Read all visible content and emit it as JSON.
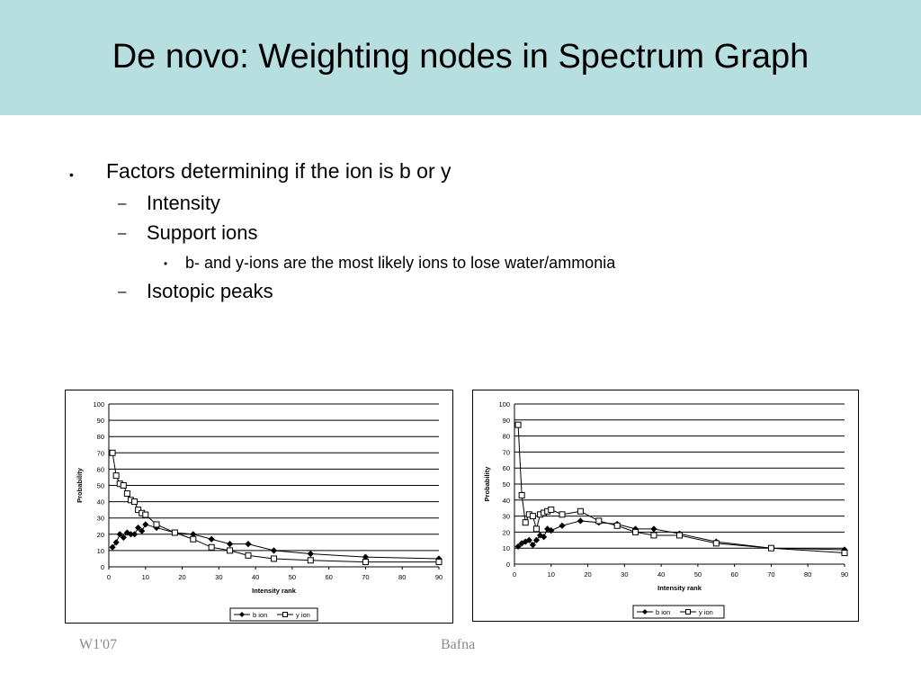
{
  "slide": {
    "title": "De novo: Weighting nodes in Spectrum Graph",
    "bullets": {
      "b1": {
        "text": "Factors determining if the ion is b or y",
        "marker": "•"
      },
      "b2": {
        "text": "Intensity",
        "marker": "–"
      },
      "b3": {
        "text": "Support ions",
        "marker": "–"
      },
      "b4": {
        "text": "b- and y-ions are the most likely ions to lose water/ammonia",
        "marker": "•"
      },
      "b5": {
        "text": "Isotopic peaks",
        "marker": "–"
      }
    },
    "footer": {
      "left": "W1'07",
      "center": "Bafna"
    }
  },
  "chart_data": [
    {
      "type": "line",
      "title": "",
      "xlabel": "Intensity rank",
      "ylabel": "Probability",
      "xlim": [
        0,
        90
      ],
      "ylim": [
        0,
        100
      ],
      "xticks": [
        0,
        10,
        20,
        30,
        40,
        50,
        60,
        70,
        80,
        90
      ],
      "yticks": [
        0,
        10,
        20,
        30,
        40,
        50,
        60,
        70,
        80,
        90,
        100
      ],
      "grid": "horizontal",
      "legend": "bottom-center",
      "series": [
        {
          "name": "b ion",
          "marker": "filled-diamond",
          "color": "#000000",
          "x": [
            1,
            2,
            3,
            4,
            5,
            6,
            7,
            8,
            9,
            10,
            13,
            18,
            23,
            28,
            33,
            38,
            45,
            55,
            70,
            90
          ],
          "y": [
            12,
            15,
            20,
            18,
            21,
            20,
            20,
            24,
            22,
            26,
            24,
            21,
            20,
            17,
            14,
            14,
            10,
            8,
            6,
            5
          ]
        },
        {
          "name": "y ion",
          "marker": "open-square",
          "color": "#000000",
          "x": [
            1,
            2,
            3,
            4,
            5,
            6,
            7,
            8,
            9,
            10,
            13,
            18,
            23,
            28,
            33,
            38,
            45,
            55,
            70,
            90
          ],
          "y": [
            70,
            56,
            51,
            50,
            45,
            41,
            40,
            35,
            33,
            32,
            26,
            21,
            17,
            12,
            10,
            7,
            5,
            4,
            3,
            3
          ]
        }
      ]
    },
    {
      "type": "line",
      "title": "",
      "xlabel": "Intensity rank",
      "ylabel": "Probability",
      "xlim": [
        0,
        90
      ],
      "ylim": [
        0,
        100
      ],
      "xticks": [
        0,
        10,
        20,
        30,
        40,
        50,
        60,
        70,
        80,
        90
      ],
      "yticks": [
        0,
        10,
        20,
        30,
        40,
        50,
        60,
        70,
        80,
        90,
        100
      ],
      "grid": "horizontal",
      "legend": "bottom-center",
      "series": [
        {
          "name": "b ion",
          "marker": "filled-diamond",
          "color": "#000000",
          "x": [
            1,
            2,
            3,
            4,
            5,
            6,
            7,
            8,
            9,
            10,
            13,
            18,
            23,
            28,
            33,
            38,
            45,
            55,
            70,
            90
          ],
          "y": [
            11,
            13,
            14,
            15,
            12,
            15,
            18,
            17,
            22,
            21,
            24,
            27,
            26,
            25,
            22,
            22,
            19,
            14,
            10,
            9
          ]
        },
        {
          "name": "y ion",
          "marker": "open-square",
          "color": "#000000",
          "x": [
            1,
            2,
            3,
            4,
            5,
            6,
            7,
            8,
            9,
            10,
            13,
            18,
            23,
            28,
            33,
            38,
            45,
            55,
            70,
            90
          ],
          "y": [
            87,
            43,
            26,
            31,
            30,
            22,
            31,
            32,
            33,
            34,
            31,
            33,
            27,
            24,
            20,
            18,
            18,
            13,
            10,
            7
          ]
        }
      ]
    }
  ]
}
